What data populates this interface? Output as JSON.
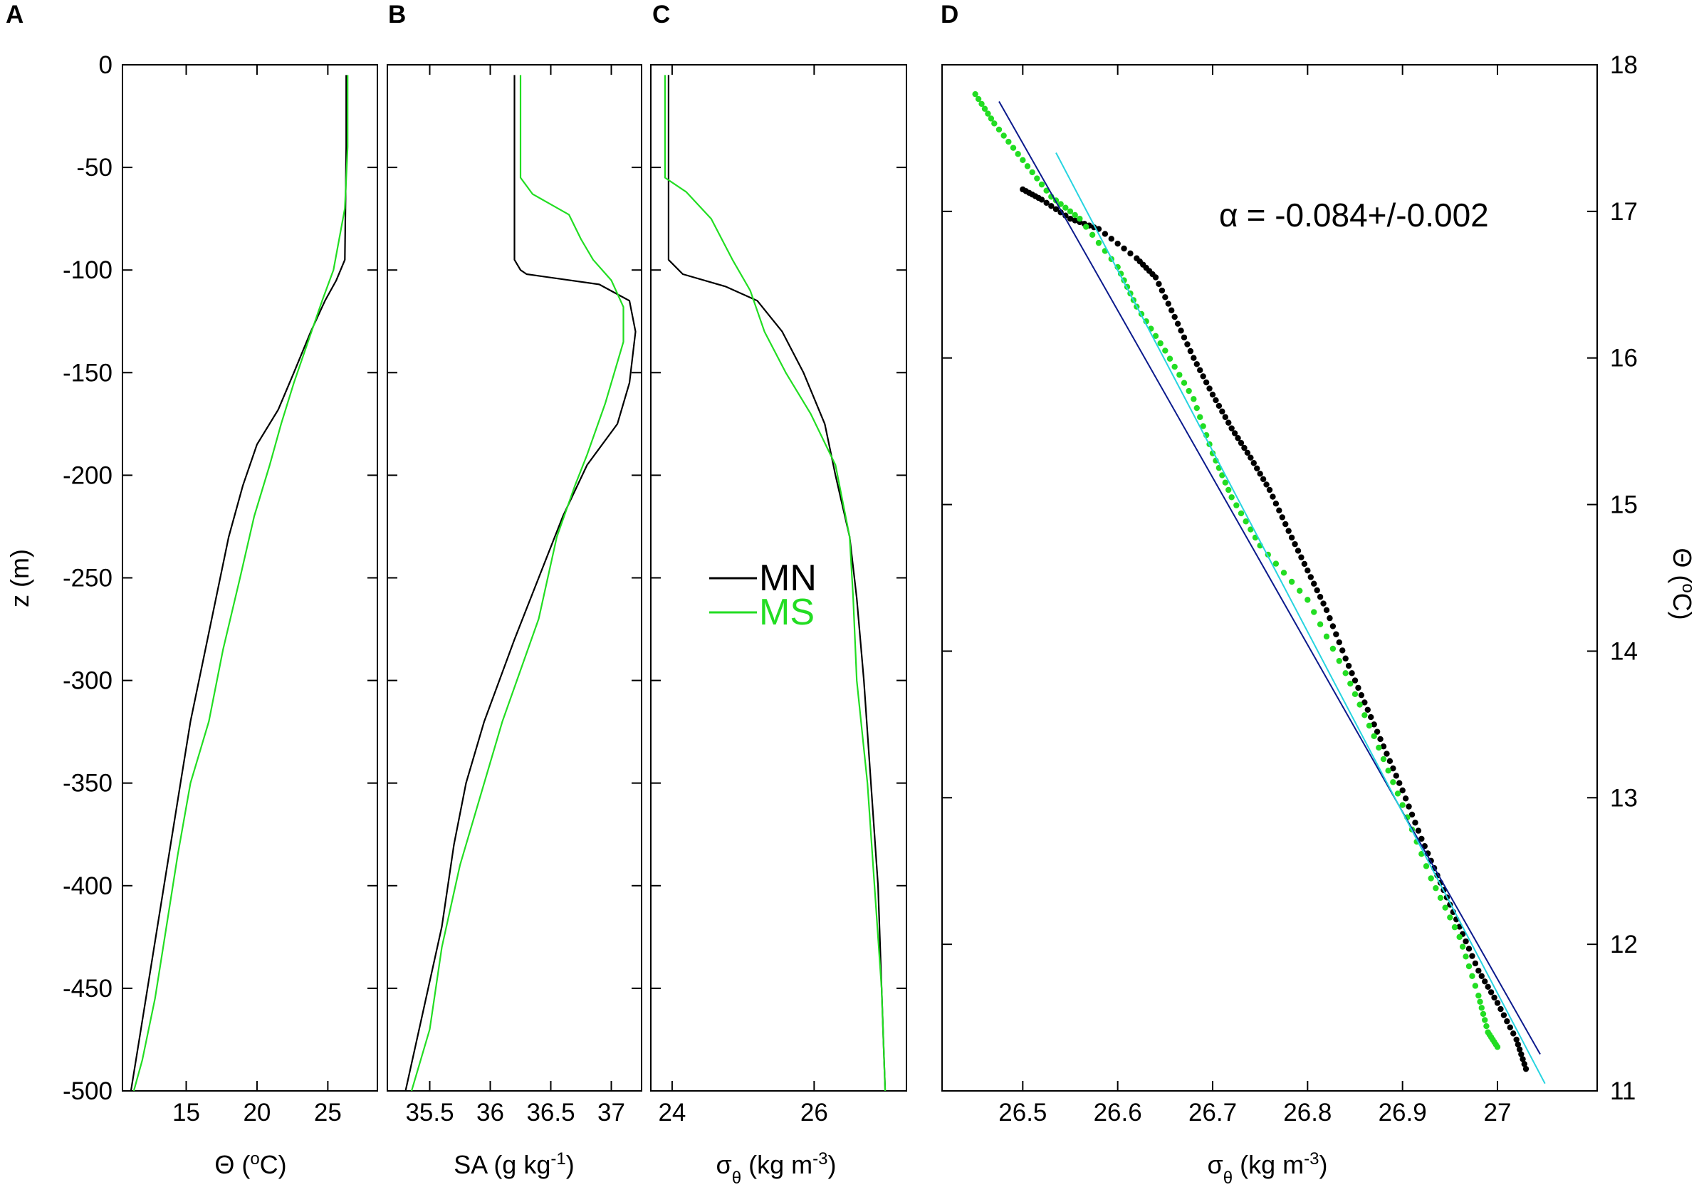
{
  "figure": {
    "panel_labels": [
      "A",
      "B",
      "C",
      "D"
    ],
    "legend": [
      {
        "name": "MN",
        "color": "#000000"
      },
      {
        "name": "MS",
        "color": "#22dd22"
      }
    ],
    "annotation_prefix": "α",
    "annotation_value": "= -0.084+/-0.002"
  },
  "colors": {
    "MN": "#000000",
    "MS": "#22dd22",
    "fit_dark": "#0b1a8c",
    "fit_light": "#27d4e0"
  },
  "chart_data": [
    {
      "panel": "A",
      "type": "line",
      "ylabel": "z (m)",
      "xlabel_main": "Θ (",
      "xlabel_sup": "o",
      "xlabel_tail": "C)",
      "xlim": [
        10.5,
        28.5
      ],
      "ylim": [
        -500,
        0
      ],
      "xticks": [
        15,
        20,
        25
      ],
      "yticks": [
        0,
        -50,
        -100,
        -150,
        -200,
        -250,
        -300,
        -350,
        -400,
        -450,
        -500
      ],
      "series": [
        {
          "name": "MN",
          "color": "#000000",
          "points": [
            [
              26.3,
              -5
            ],
            [
              26.3,
              -40
            ],
            [
              26.2,
              -95
            ],
            [
              25.6,
              -105
            ],
            [
              24.8,
              -115
            ],
            [
              23.8,
              -130
            ],
            [
              22.6,
              -150
            ],
            [
              21.5,
              -168
            ],
            [
              20.0,
              -185
            ],
            [
              19.0,
              -205
            ],
            [
              18.0,
              -230
            ],
            [
              17.1,
              -260
            ],
            [
              16.2,
              -290
            ],
            [
              15.3,
              -320
            ],
            [
              14.6,
              -350
            ],
            [
              13.9,
              -380
            ],
            [
              13.2,
              -410
            ],
            [
              12.5,
              -440
            ],
            [
              11.8,
              -470
            ],
            [
              11.1,
              -500
            ]
          ]
        },
        {
          "name": "MS",
          "color": "#22dd22",
          "points": [
            [
              26.4,
              -5
            ],
            [
              26.4,
              -40
            ],
            [
              26.2,
              -70
            ],
            [
              25.4,
              -100
            ],
            [
              24.6,
              -115
            ],
            [
              23.6,
              -135
            ],
            [
              22.6,
              -155
            ],
            [
              21.7,
              -175
            ],
            [
              20.9,
              -195
            ],
            [
              19.8,
              -220
            ],
            [
              18.8,
              -250
            ],
            [
              17.6,
              -285
            ],
            [
              16.6,
              -320
            ],
            [
              15.3,
              -350
            ],
            [
              14.4,
              -385
            ],
            [
              13.6,
              -420
            ],
            [
              12.8,
              -455
            ],
            [
              11.9,
              -485
            ],
            [
              11.3,
              -500
            ]
          ]
        }
      ]
    },
    {
      "panel": "B",
      "type": "line",
      "xlabel_main": "SA (g kg",
      "xlabel_sup": "-1",
      "xlabel_tail": ")",
      "xlim": [
        35.15,
        37.25
      ],
      "ylim": [
        -500,
        0
      ],
      "xticks": [
        35.5,
        36,
        36.5,
        37
      ],
      "xtick_labels": [
        "35.5",
        "36",
        "36.5",
        "37"
      ],
      "series": [
        {
          "name": "MN",
          "color": "#000000",
          "points": [
            [
              36.2,
              -5
            ],
            [
              36.2,
              -95
            ],
            [
              36.25,
              -100
            ],
            [
              36.3,
              -102
            ],
            [
              36.9,
              -107
            ],
            [
              37.15,
              -115
            ],
            [
              37.2,
              -130
            ],
            [
              37.15,
              -155
            ],
            [
              37.05,
              -175
            ],
            [
              36.8,
              -195
            ],
            [
              36.6,
              -220
            ],
            [
              36.4,
              -250
            ],
            [
              36.2,
              -280
            ],
            [
              35.95,
              -320
            ],
            [
              35.8,
              -350
            ],
            [
              35.7,
              -380
            ],
            [
              35.6,
              -420
            ],
            [
              35.45,
              -460
            ],
            [
              35.3,
              -500
            ]
          ]
        },
        {
          "name": "MS",
          "color": "#22dd22",
          "points": [
            [
              36.25,
              -5
            ],
            [
              36.25,
              -55
            ],
            [
              36.35,
              -63
            ],
            [
              36.65,
              -73
            ],
            [
              36.75,
              -85
            ],
            [
              36.85,
              -95
            ],
            [
              37.0,
              -105
            ],
            [
              37.1,
              -118
            ],
            [
              37.1,
              -135
            ],
            [
              36.95,
              -165
            ],
            [
              36.8,
              -190
            ],
            [
              36.7,
              -205
            ],
            [
              36.55,
              -230
            ],
            [
              36.4,
              -270
            ],
            [
              36.1,
              -320
            ],
            [
              35.95,
              -350
            ],
            [
              35.75,
              -390
            ],
            [
              35.6,
              -430
            ],
            [
              35.5,
              -470
            ],
            [
              35.35,
              -500
            ]
          ]
        }
      ]
    },
    {
      "panel": "C",
      "type": "line",
      "xlabel_main": "σ",
      "xlabel_sub": "θ",
      "xlabel_tail": " (kg m",
      "xlabel_sup": "-3",
      "xlabel_end": ")",
      "xlim": [
        23.7,
        27.3
      ],
      "ylim": [
        -500,
        0
      ],
      "xticks": [
        24,
        26
      ],
      "series": [
        {
          "name": "MN",
          "color": "#000000",
          "points": [
            [
              23.95,
              -5
            ],
            [
              23.95,
              -95
            ],
            [
              24.15,
              -102
            ],
            [
              24.75,
              -108
            ],
            [
              25.2,
              -115
            ],
            [
              25.55,
              -130
            ],
            [
              25.85,
              -150
            ],
            [
              26.15,
              -175
            ],
            [
              26.3,
              -200
            ],
            [
              26.5,
              -230
            ],
            [
              26.6,
              -260
            ],
            [
              26.7,
              -300
            ],
            [
              26.8,
              -350
            ],
            [
              26.9,
              -400
            ],
            [
              26.95,
              -450
            ],
            [
              27.0,
              -500
            ]
          ]
        },
        {
          "name": "MS",
          "color": "#22dd22",
          "points": [
            [
              23.9,
              -5
            ],
            [
              23.9,
              -55
            ],
            [
              24.2,
              -62
            ],
            [
              24.55,
              -75
            ],
            [
              24.85,
              -95
            ],
            [
              25.1,
              -110
            ],
            [
              25.3,
              -130
            ],
            [
              25.6,
              -150
            ],
            [
              25.95,
              -170
            ],
            [
              26.3,
              -195
            ],
            [
              26.5,
              -230
            ],
            [
              26.55,
              -260
            ],
            [
              26.6,
              -300
            ],
            [
              26.75,
              -350
            ],
            [
              26.85,
              -400
            ],
            [
              26.95,
              -450
            ],
            [
              27.0,
              -500
            ]
          ]
        }
      ]
    },
    {
      "panel": "D",
      "type": "scatter",
      "xlabel_main": "σ",
      "xlabel_sub": "θ",
      "xlabel_tail": " (kg m",
      "xlabel_sup": "-3",
      "xlabel_end": ")",
      "ylabel_main": "Θ (",
      "ylabel_sup": "o",
      "ylabel_tail": "C)",
      "xlim": [
        26.415,
        27.105
      ],
      "ylim": [
        11,
        18
      ],
      "xticks": [
        26.5,
        26.6,
        26.7,
        26.8,
        26.9,
        27
      ],
      "xtick_labels": [
        "26.5",
        "26.6",
        "26.7",
        "26.8",
        "26.9",
        "27"
      ],
      "yticks": [
        11,
        12,
        13,
        14,
        15,
        16,
        17,
        18
      ],
      "series": [
        {
          "name": "MN",
          "color": "#000000",
          "points": [
            [
              26.5,
              17.15
            ],
            [
              26.52,
              17.08
            ],
            [
              26.55,
              16.95
            ],
            [
              26.58,
              16.88
            ],
            [
              26.62,
              16.68
            ],
            [
              26.64,
              16.55
            ],
            [
              26.66,
              16.28
            ],
            [
              26.68,
              16.0
            ],
            [
              26.7,
              15.75
            ],
            [
              26.72,
              15.52
            ],
            [
              26.74,
              15.32
            ],
            [
              26.76,
              15.1
            ],
            [
              26.78,
              14.82
            ],
            [
              26.8,
              14.55
            ],
            [
              26.82,
              14.28
            ],
            [
              26.84,
              13.95
            ],
            [
              26.86,
              13.65
            ],
            [
              26.88,
              13.35
            ],
            [
              26.9,
              13.05
            ],
            [
              26.92,
              12.72
            ],
            [
              26.94,
              12.42
            ],
            [
              26.96,
              12.12
            ],
            [
              26.98,
              11.82
            ],
            [
              27.0,
              11.6
            ],
            [
              27.02,
              11.35
            ],
            [
              27.03,
              11.15
            ]
          ]
        },
        {
          "name": "MS",
          "color": "#22dd22",
          "points": [
            [
              26.45,
              17.8
            ],
            [
              26.47,
              17.6
            ],
            [
              26.5,
              17.35
            ],
            [
              26.53,
              17.1
            ],
            [
              26.56,
              16.95
            ],
            [
              26.6,
              16.62
            ],
            [
              26.62,
              16.35
            ],
            [
              26.65,
              16.05
            ],
            [
              26.68,
              15.72
            ],
            [
              26.7,
              15.35
            ],
            [
              26.72,
              15.05
            ],
            [
              26.75,
              14.72
            ],
            [
              26.8,
              14.35
            ],
            [
              26.84,
              13.85
            ],
            [
              26.87,
              13.42
            ],
            [
              26.9,
              12.95
            ],
            [
              26.93,
              12.45
            ],
            [
              26.96,
              12.05
            ],
            [
              26.98,
              11.65
            ],
            [
              26.99,
              11.4
            ],
            [
              27.0,
              11.3
            ]
          ]
        },
        {
          "name": "fit-dark",
          "color": "#0b1a8c",
          "points": [
            [
              26.475,
              17.75
            ],
            [
              27.045,
              11.25
            ]
          ]
        },
        {
          "name": "fit-light",
          "color": "#27d4e0",
          "points": [
            [
              26.535,
              17.4
            ],
            [
              27.05,
              11.05
            ]
          ]
        }
      ]
    }
  ]
}
